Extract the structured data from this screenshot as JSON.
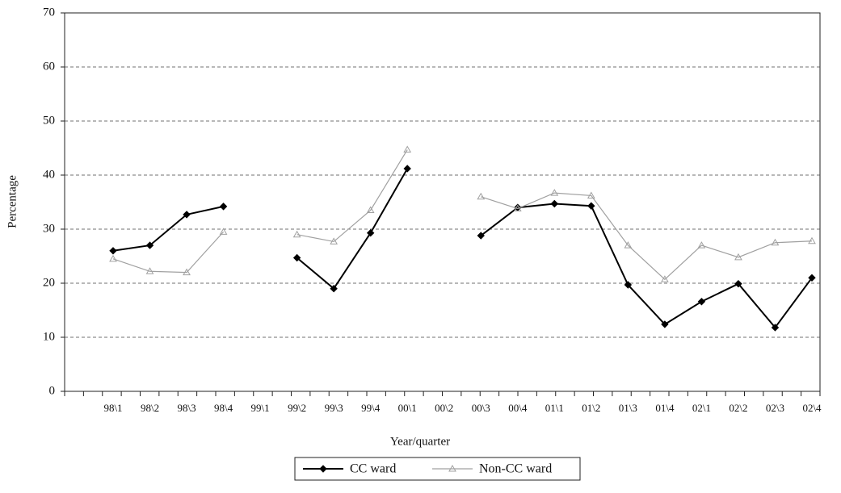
{
  "chart_data": {
    "type": "line",
    "x_label": "Year/quarter",
    "y_label": "Percentage",
    "categories": [
      "98\\1",
      "98\\2",
      "98\\3",
      "98\\4",
      "99\\1",
      "99\\2",
      "99\\3",
      "99\\4",
      "00\\1",
      "00\\2",
      "00\\3",
      "00\\4",
      "01\\1",
      "01\\2",
      "01\\3",
      "01\\4",
      "02\\1",
      "02\\2",
      "02\\3",
      "02\\4"
    ],
    "series": [
      {
        "name": "CC ward",
        "color": "#000000",
        "marker": "diamond",
        "values": [
          26,
          27,
          32.7,
          34.2,
          null,
          24.7,
          19,
          29.3,
          41.2,
          null,
          28.8,
          34,
          34.7,
          34.3,
          19.7,
          12.4,
          16.6,
          19.9,
          11.8,
          21
        ]
      },
      {
        "name": "Non-CC ward",
        "color": "#a0a0a0",
        "marker": "triangle",
        "values": [
          24.5,
          22.2,
          22,
          29.5,
          null,
          29,
          27.7,
          33.5,
          44.7,
          null,
          36,
          33.8,
          36.7,
          36.2,
          27,
          20.7,
          27,
          24.8,
          27.5,
          27.8
        ]
      }
    ],
    "ylim": [
      0,
      70
    ],
    "yticks": [
      0,
      10,
      20,
      30,
      40,
      50,
      60,
      70
    ],
    "grid": true,
    "legend": "bottom"
  }
}
